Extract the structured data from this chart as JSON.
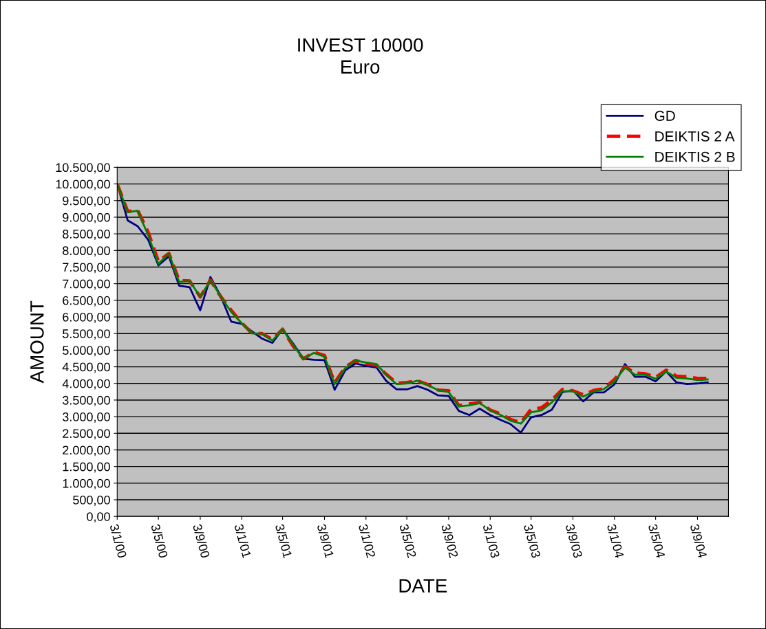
{
  "chart_data": {
    "type": "line",
    "title": "INVEST 10000\nEuro",
    "xlabel": "DATE",
    "ylabel": "AMOUNT",
    "x": [
      "2000-01-03",
      "2000-02-03",
      "2000-03-03",
      "2000-04-03",
      "2000-05-03",
      "2000-06-03",
      "2000-07-03",
      "2000-08-03",
      "2000-09-03",
      "2000-10-03",
      "2000-11-03",
      "2000-12-03",
      "2001-01-03",
      "2001-02-03",
      "2001-03-03",
      "2001-04-03",
      "2001-05-03",
      "2001-06-03",
      "2001-07-03",
      "2001-08-03",
      "2001-09-03",
      "2001-10-03",
      "2001-11-03",
      "2001-12-03",
      "2002-01-03",
      "2002-02-03",
      "2002-03-03",
      "2002-04-03",
      "2002-05-03",
      "2002-06-03",
      "2002-07-03",
      "2002-08-03",
      "2002-09-03",
      "2002-10-03",
      "2002-11-03",
      "2002-12-03",
      "2003-01-03",
      "2003-02-03",
      "2003-03-03",
      "2003-04-03",
      "2003-05-03",
      "2003-06-03",
      "2003-07-03",
      "2003-08-03",
      "2003-09-03",
      "2003-10-03",
      "2003-11-03",
      "2003-12-03",
      "2004-01-03",
      "2004-02-03",
      "2004-03-03",
      "2004-04-03",
      "2004-05-03",
      "2004-06-03",
      "2004-07-03",
      "2004-08-03",
      "2004-09-03",
      "2004-10-03"
    ],
    "series": [
      {
        "name": "GD",
        "color": "#000080",
        "line_style": "solid",
        "values": [
          10000,
          8900,
          8730,
          8320,
          7550,
          7820,
          6940,
          6890,
          6200,
          7200,
          6600,
          5860,
          5790,
          5560,
          5350,
          5220,
          5630,
          5200,
          4740,
          4710,
          4700,
          3810,
          4390,
          4600,
          4530,
          4480,
          4080,
          3820,
          3820,
          3920,
          3810,
          3640,
          3620,
          3170,
          3050,
          3240,
          3050,
          2900,
          2780,
          2520,
          2980,
          3050,
          3210,
          3740,
          3790,
          3460,
          3730,
          3730,
          3970,
          4580,
          4200,
          4200,
          4060,
          4360,
          4030,
          3980,
          4000,
          4030
        ]
      },
      {
        "name": "DEIKTIS 2 A",
        "color": "#ff0000",
        "line_style": "dashed",
        "values": [
          10000,
          9170,
          9210,
          8550,
          7670,
          7910,
          7100,
          7080,
          6600,
          7110,
          6600,
          6200,
          5820,
          5500,
          5500,
          5320,
          5630,
          5120,
          4740,
          4940,
          4840,
          4020,
          4490,
          4690,
          4600,
          4550,
          4280,
          4010,
          4030,
          4080,
          3970,
          3800,
          3780,
          3330,
          3380,
          3430,
          3200,
          3080,
          2920,
          2820,
          3220,
          3270,
          3500,
          3820,
          3780,
          3660,
          3790,
          3840,
          4120,
          4500,
          4310,
          4290,
          4180,
          4400,
          4220,
          4200,
          4150,
          4150
        ]
      },
      {
        "name": "DEIKTIS 2 B",
        "color": "#008000",
        "line_style": "solid",
        "values": [
          10000,
          9150,
          9190,
          8460,
          7600,
          7910,
          7050,
          7080,
          6600,
          7110,
          6600,
          6150,
          5810,
          5500,
          5500,
          5290,
          5630,
          5150,
          4740,
          4920,
          4810,
          3980,
          4460,
          4690,
          4630,
          4580,
          4260,
          3980,
          4000,
          4080,
          3950,
          3800,
          3740,
          3310,
          3340,
          3410,
          3190,
          3050,
          2880,
          2790,
          3130,
          3190,
          3430,
          3770,
          3760,
          3600,
          3750,
          3830,
          4050,
          4480,
          4260,
          4260,
          4140,
          4360,
          4170,
          4150,
          4100,
          4120
        ]
      }
    ],
    "xlim": [
      "2000-01-03",
      "2004-12-03"
    ],
    "xticks": [
      {
        "value": "2000-01-03",
        "label": "3/1/00"
      },
      {
        "value": "2000-05-03",
        "label": "3/5/00"
      },
      {
        "value": "2000-09-03",
        "label": "3/9/00"
      },
      {
        "value": "2001-01-03",
        "label": "3/1/01"
      },
      {
        "value": "2001-05-03",
        "label": "3/5/01"
      },
      {
        "value": "2001-09-03",
        "label": "3/9/01"
      },
      {
        "value": "2002-01-03",
        "label": "3/1/02"
      },
      {
        "value": "2002-05-03",
        "label": "3/5/02"
      },
      {
        "value": "2002-09-03",
        "label": "3/9/02"
      },
      {
        "value": "2003-01-03",
        "label": "3/1/03"
      },
      {
        "value": "2003-05-03",
        "label": "3/5/03"
      },
      {
        "value": "2003-09-03",
        "label": "3/9/03"
      },
      {
        "value": "2004-01-03",
        "label": "3/1/04"
      },
      {
        "value": "2004-05-03",
        "label": "3/5/04"
      },
      {
        "value": "2004-09-03",
        "label": "3/9/04"
      }
    ],
    "ylim": [
      0,
      10500
    ],
    "yticks": [
      {
        "value": 0,
        "label": "0,00"
      },
      {
        "value": 500,
        "label": "500,00"
      },
      {
        "value": 1000,
        "label": "1.000,00"
      },
      {
        "value": 1500,
        "label": "1.500,00"
      },
      {
        "value": 2000,
        "label": "2.000,00"
      },
      {
        "value": 2500,
        "label": "2.500,00"
      },
      {
        "value": 3000,
        "label": "3.000,00"
      },
      {
        "value": 3500,
        "label": "3.500,00"
      },
      {
        "value": 4000,
        "label": "4.000,00"
      },
      {
        "value": 4500,
        "label": "4.500,00"
      },
      {
        "value": 5000,
        "label": "5.000,00"
      },
      {
        "value": 5500,
        "label": "5.500,00"
      },
      {
        "value": 6000,
        "label": "6.000,00"
      },
      {
        "value": 6500,
        "label": "6.500,00"
      },
      {
        "value": 7000,
        "label": "7.000,00"
      },
      {
        "value": 7500,
        "label": "7.500,00"
      },
      {
        "value": 8000,
        "label": "8.000,00"
      },
      {
        "value": 8500,
        "label": "8.500,00"
      },
      {
        "value": 9000,
        "label": "9.000,00"
      },
      {
        "value": 9500,
        "label": "9.500,00"
      },
      {
        "value": 10000,
        "label": "10.000,00"
      },
      {
        "value": 10500,
        "label": "10.500,00"
      }
    ],
    "grid": "y",
    "legend": "top right",
    "marker": "none"
  }
}
